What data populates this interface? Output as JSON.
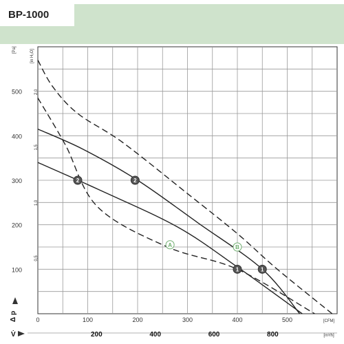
{
  "header": {
    "title": "BP-1000"
  },
  "chart_data": {
    "type": "line",
    "title": "BP-1000",
    "x": {
      "unit": "[CFM]",
      "range": [
        0,
        600
      ],
      "ticks": [
        0,
        100,
        200,
        300,
        400,
        500
      ],
      "tick_labels": [
        "0",
        "100",
        "200",
        "300",
        "400",
        "500"
      ]
    },
    "x2": {
      "unit": "[m³/h]",
      "ticks": [
        200,
        400,
        600,
        800
      ],
      "tick_labels": [
        "200",
        "400",
        "600",
        "800"
      ]
    },
    "y": {
      "unit": "[Pa]",
      "range": [
        0,
        600
      ],
      "ticks": [
        100,
        200,
        300,
        400,
        500
      ],
      "tick_labels": [
        "100",
        "200",
        "300",
        "400",
        "500"
      ]
    },
    "y2": {
      "unit": "[in H₂O]",
      "ticks": [
        0.5,
        1.0,
        1.5,
        2.0
      ],
      "tick_labels": [
        "0,5",
        "1,0",
        "1,5",
        "2,0"
      ]
    },
    "axis_symbols": {
      "x": "V̇",
      "y": "Δ p"
    },
    "grid": true,
    "series": [
      {
        "style": "solid",
        "x": [
          0,
          120,
          280,
          400,
          530
        ],
        "y": [
          340,
          280,
          195,
          105,
          0
        ]
      },
      {
        "style": "solid",
        "x": [
          0,
          90,
          200,
          320,
          450,
          525
        ],
        "y": [
          415,
          370,
          300,
          205,
          100,
          0
        ]
      },
      {
        "style": "dashed",
        "x": [
          0,
          55,
          120,
          260,
          400,
          555
        ],
        "y": [
          485,
          380,
          240,
          150,
          100,
          0
        ]
      },
      {
        "style": "dashed",
        "x": [
          0,
          30,
          80,
          170,
          300,
          400,
          480,
          590
        ],
        "y": [
          570,
          510,
          450,
          385,
          270,
          180,
          100,
          0
        ]
      }
    ],
    "points": [
      {
        "label": "2",
        "x": 80,
        "y": 300
      },
      {
        "label": "2",
        "x": 195,
        "y": 300
      },
      {
        "label": "1",
        "x": 400,
        "y": 100
      },
      {
        "label": "1",
        "x": 450,
        "y": 100
      },
      {
        "label": "A",
        "x": 265,
        "y": 155,
        "style": "outline"
      },
      {
        "label": "B",
        "x": 400,
        "y": 150,
        "style": "outline"
      }
    ]
  },
  "colors": {
    "header_band": "#cfe3cc",
    "curve": "#222222",
    "grid": "#999999"
  }
}
